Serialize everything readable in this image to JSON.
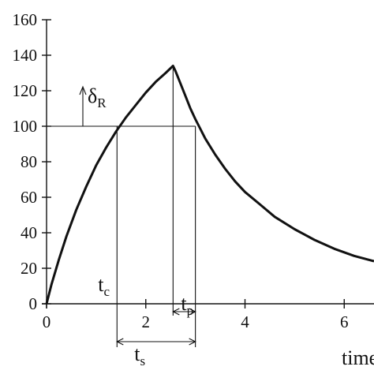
{
  "chart_data": {
    "type": "line",
    "title": "",
    "xlabel": "time",
    "ylabel": "",
    "xlim": [
      0,
      6.6
    ],
    "ylim": [
      0,
      160
    ],
    "x_ticks": [
      "0",
      "2",
      "4",
      "6"
    ],
    "y_ticks": [
      "0",
      "20",
      "40",
      "60",
      "80",
      "100",
      "120",
      "140",
      "160"
    ],
    "grid": false,
    "legend": "none",
    "series": [
      {
        "x": [
          0,
          0.1,
          0.25,
          0.4,
          0.6,
          0.8,
          1.0,
          1.2,
          1.4,
          1.6,
          1.8,
          2.0,
          2.2,
          2.4,
          2.55,
          2.6,
          2.7,
          2.8,
          2.9,
          3.0,
          3.2,
          3.4,
          3.6,
          3.8,
          4.0,
          4.3,
          4.6,
          5.0,
          5.4,
          5.8,
          6.2,
          6.6
        ],
        "y": [
          0,
          11,
          25,
          38,
          53,
          66,
          78,
          88,
          97,
          105,
          112,
          119,
          125,
          130,
          134,
          131,
          124,
          117,
          110,
          104,
          93,
          84,
          76,
          69,
          63,
          56,
          49,
          42,
          36,
          31,
          27,
          24
        ]
      }
    ],
    "annotations": {
      "threshold": {
        "value": 100,
        "label": "δ",
        "label_sub": "R"
      },
      "tc": {
        "x": 1.42,
        "label": "t",
        "label_sub": "c"
      },
      "peak": {
        "x": 2.55
      },
      "t_end": {
        "x": 3.0
      },
      "tp": {
        "label": "t",
        "label_sub": "p"
      },
      "ts": {
        "label": "t",
        "label_sub": "s"
      }
    }
  }
}
